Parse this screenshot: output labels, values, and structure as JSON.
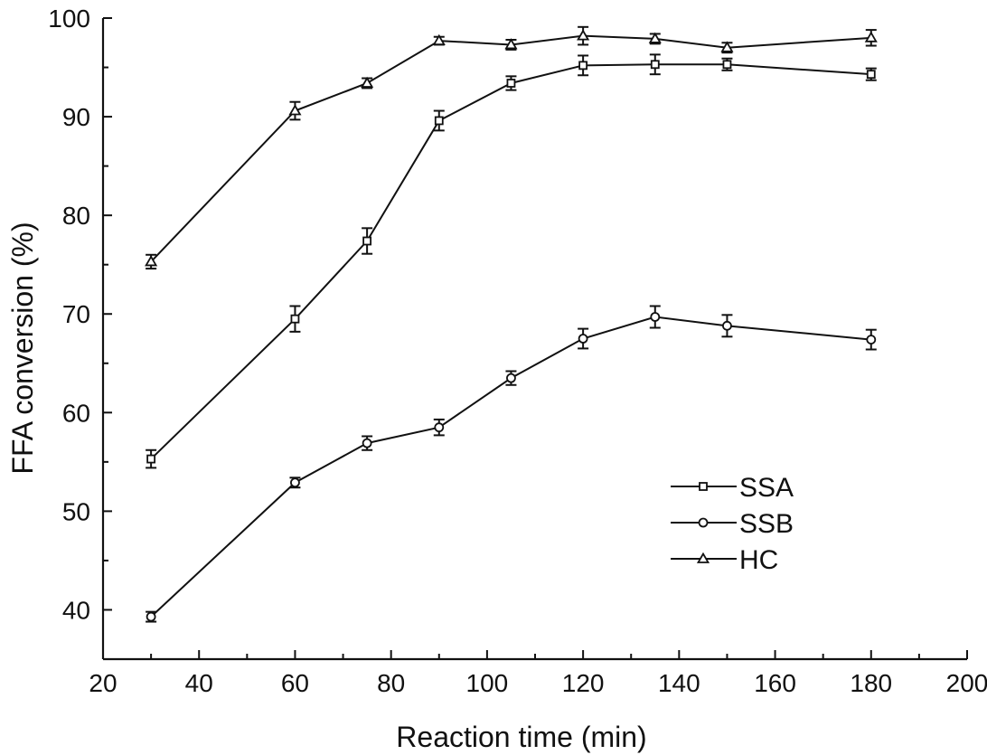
{
  "chart_data": {
    "type": "line",
    "xlabel": "Reaction time (min)",
    "ylabel": "FFA conversion (%)",
    "xlim": [
      20,
      200
    ],
    "ylim": [
      35,
      100
    ],
    "xticks": [
      20,
      40,
      60,
      80,
      100,
      120,
      140,
      160,
      180,
      200
    ],
    "yticks": [
      40,
      50,
      60,
      70,
      80,
      90,
      100
    ],
    "grid": false,
    "legend_position": "lower-right",
    "series": [
      {
        "name": "SSA",
        "marker": "square",
        "x": [
          30,
          60,
          75,
          90,
          105,
          120,
          135,
          150,
          180
        ],
        "y": [
          55.3,
          69.5,
          77.4,
          89.6,
          93.4,
          95.2,
          95.3,
          95.3,
          94.3
        ],
        "err": [
          0.9,
          1.3,
          1.3,
          1.0,
          0.7,
          1.0,
          1.0,
          0.6,
          0.6
        ]
      },
      {
        "name": "SSB",
        "marker": "circle",
        "x": [
          30,
          60,
          75,
          90,
          105,
          120,
          135,
          150,
          180
        ],
        "y": [
          39.3,
          52.9,
          56.9,
          58.5,
          63.5,
          67.5,
          69.7,
          68.8,
          67.4
        ],
        "err": [
          0.5,
          0.5,
          0.7,
          0.8,
          0.7,
          1.0,
          1.1,
          1.1,
          1.0
        ]
      },
      {
        "name": "HC",
        "marker": "triangle",
        "x": [
          30,
          60,
          75,
          90,
          105,
          120,
          135,
          150,
          180
        ],
        "y": [
          75.3,
          90.6,
          93.4,
          97.7,
          97.3,
          98.2,
          97.9,
          97.0,
          98.0
        ],
        "err": [
          0.7,
          0.9,
          0.5,
          0.4,
          0.5,
          0.9,
          0.5,
          0.5,
          0.8
        ]
      }
    ]
  }
}
